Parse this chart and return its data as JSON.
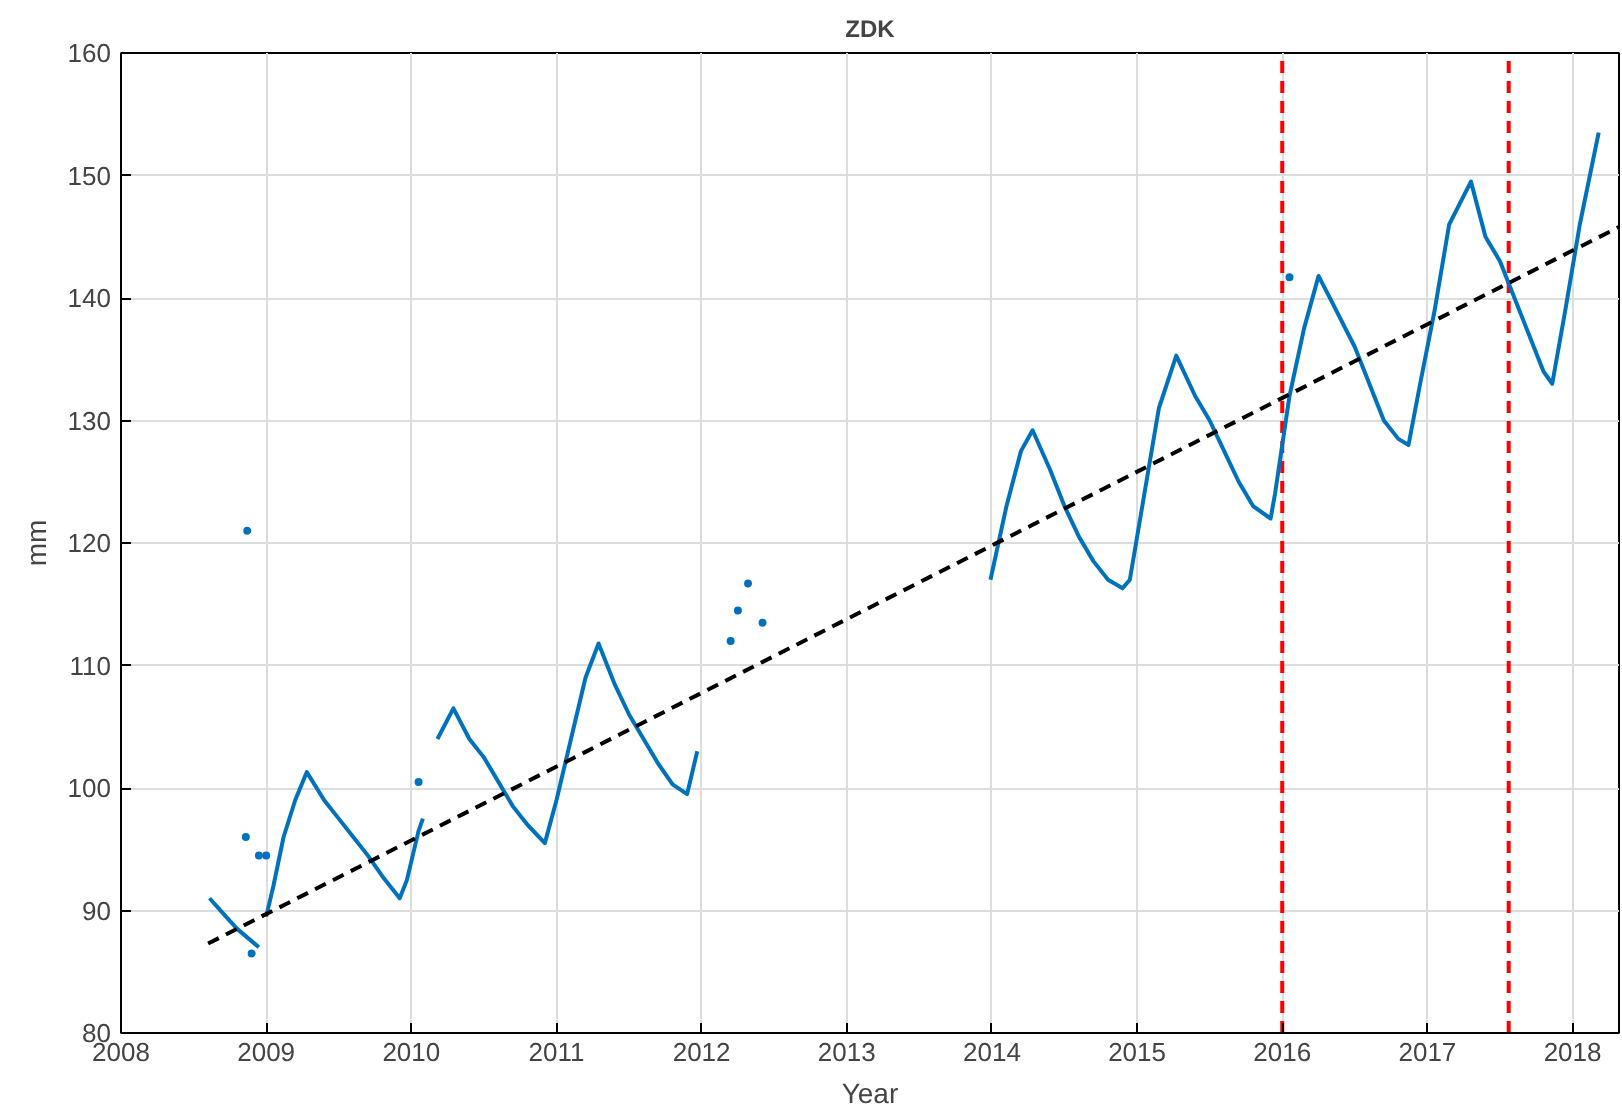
{
  "chart_data": {
    "type": "line",
    "title": "ZDK",
    "xlabel": "Year",
    "ylabel": "mm",
    "xlim": [
      2008,
      2018.32
    ],
    "ylim": [
      80,
      160
    ],
    "xticks": [
      2008,
      2009,
      2010,
      2011,
      2012,
      2013,
      2014,
      2015,
      2016,
      2017,
      2018
    ],
    "yticks": [
      80,
      90,
      100,
      110,
      120,
      130,
      140,
      150,
      160
    ],
    "grid": true,
    "ref_lines": [
      {
        "axis": "x",
        "value": 2016,
        "color": "#ff0000",
        "line_style": "dashed"
      },
      {
        "axis": "x",
        "value": 2017.56,
        "color": "#ff0000",
        "line_style": "dashed"
      }
    ],
    "series": [
      {
        "color": "#0072bd",
        "line_style": "solid",
        "x": [
          2008.61,
          2008.7,
          2008.8,
          2008.9,
          2008.95,
          null,
          2009.0,
          2009.05,
          2009.12,
          2009.2,
          2009.28,
          2009.4,
          2009.5,
          2009.6,
          2009.7,
          2009.8,
          2009.92,
          2009.97,
          2010.05,
          2010.08,
          null,
          2010.18,
          2010.29,
          2010.4,
          2010.5,
          2010.6,
          2010.7,
          2010.8,
          2010.92,
          2011.0,
          2011.1,
          2011.2,
          2011.29,
          2011.4,
          2011.5,
          2011.6,
          2011.7,
          2011.8,
          2011.9,
          2011.97,
          null,
          2013.99,
          2014.1,
          2014.2,
          2014.28,
          2014.4,
          2014.5,
          2014.6,
          2014.7,
          2014.8,
          2014.9,
          2014.95,
          2015.05,
          2015.15,
          2015.27,
          2015.4,
          2015.5,
          2015.6,
          2015.7,
          2015.8,
          2015.92,
          2015.95,
          2016.05,
          2016.15,
          2016.25,
          2016.35,
          2016.5,
          2016.6,
          2016.7,
          2016.8,
          2016.87,
          2016.95,
          2017.05,
          2017.15,
          2017.3,
          2017.4,
          2017.5,
          2017.6,
          2017.7,
          2017.8,
          2017.86,
          2017.95,
          2018.05,
          2018.18
        ],
        "values": [
          91,
          89.8,
          88.5,
          87.5,
          87,
          null,
          89.5,
          92,
          96,
          99,
          101.3,
          99,
          97.5,
          96,
          94.5,
          92.8,
          91,
          92.5,
          96.5,
          97.5,
          null,
          104,
          106.5,
          104,
          102.5,
          100.5,
          98.5,
          97,
          95.5,
          99,
          104,
          109,
          111.8,
          108.5,
          106,
          104,
          102,
          100.3,
          99.5,
          103,
          null,
          117,
          123,
          127.5,
          129.2,
          126,
          123,
          120.5,
          118.5,
          117,
          116.3,
          117,
          124,
          131,
          135.3,
          132,
          130,
          127.5,
          125,
          123,
          122,
          124,
          132,
          137.5,
          141.8,
          139.5,
          136,
          133,
          130,
          128.5,
          128,
          133,
          139,
          146,
          149.5,
          145,
          143,
          140,
          137,
          134,
          133,
          139,
          146,
          153.5
        ]
      },
      {
        "type": "scatter",
        "color": "#0072bd",
        "marker": "circle",
        "x": [
          2008.87,
          2008.86,
          2008.9,
          2008.95,
          2009.0,
          2010.05,
          2012.2,
          2012.25,
          2012.32,
          2012.42,
          2016.05
        ],
        "values": [
          121,
          96,
          86.5,
          94.5,
          94.5,
          100.5,
          112,
          114.5,
          116.7,
          113.5,
          141.7
        ]
      },
      {
        "type": "line",
        "color": "#000000",
        "line_style": "dashed",
        "x": [
          2008.6,
          2018.32
        ],
        "values": [
          87.3,
          145.8
        ]
      }
    ]
  }
}
